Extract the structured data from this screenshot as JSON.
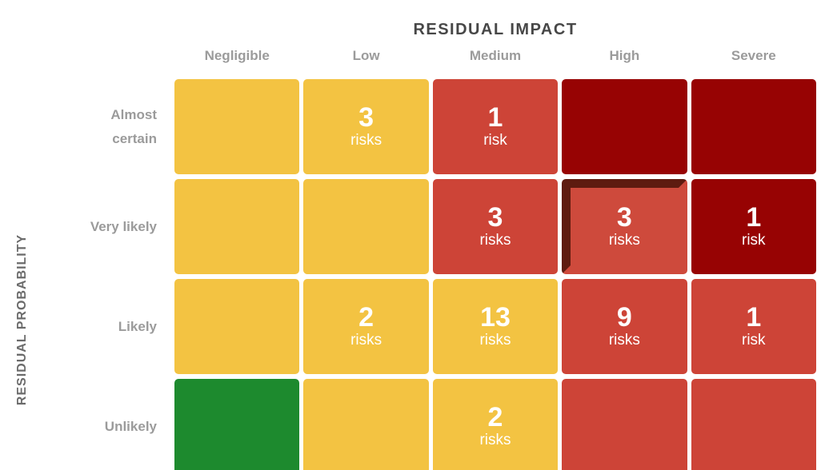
{
  "title": "RESIDUAL IMPACT",
  "y_axis_title": "RESIDUAL PROBABILITY",
  "chart_data": {
    "type": "heatmap",
    "title": "RESIDUAL IMPACT",
    "x_label": "RESIDUAL IMPACT",
    "y_label": "RESIDUAL PROBABILITY",
    "x_categories": [
      "Negligible",
      "Low",
      "Medium",
      "High",
      "Severe"
    ],
    "y_categories": [
      "Almost certain",
      "Very likely",
      "Likely",
      "Unlikely"
    ],
    "unit_singular": "risk",
    "unit_plural": "risks",
    "counts": [
      [
        null,
        3,
        1,
        null,
        null
      ],
      [
        null,
        null,
        3,
        3,
        1
      ],
      [
        null,
        2,
        13,
        9,
        1
      ],
      [
        null,
        null,
        2,
        null,
        null
      ]
    ],
    "cell_colors": [
      [
        "yellow",
        "yellow",
        "red",
        "dark_red",
        "dark_red"
      ],
      [
        "yellow",
        "yellow",
        "red",
        "red",
        "dark_red"
      ],
      [
        "yellow",
        "yellow",
        "yellow",
        "red",
        "red"
      ],
      [
        "green",
        "yellow",
        "yellow",
        "red",
        "red"
      ]
    ],
    "selected_cell": {
      "row_index": 1,
      "col_index": 3,
      "row": "Very likely",
      "col": "High"
    },
    "palette": {
      "yellow": "#F3C342",
      "red": "#CD4437",
      "dark_red": "#970303",
      "green": "#1D8A2E",
      "selected_face": "#CE4A3C",
      "selected_bevel": "#5E1B10",
      "title_text": "#474747",
      "header_text": "#9B9B9B",
      "axis_text": "#6B6B6B",
      "cell_text": "#FFFFFF"
    },
    "legend_position": "none",
    "grid_lines": "off"
  }
}
